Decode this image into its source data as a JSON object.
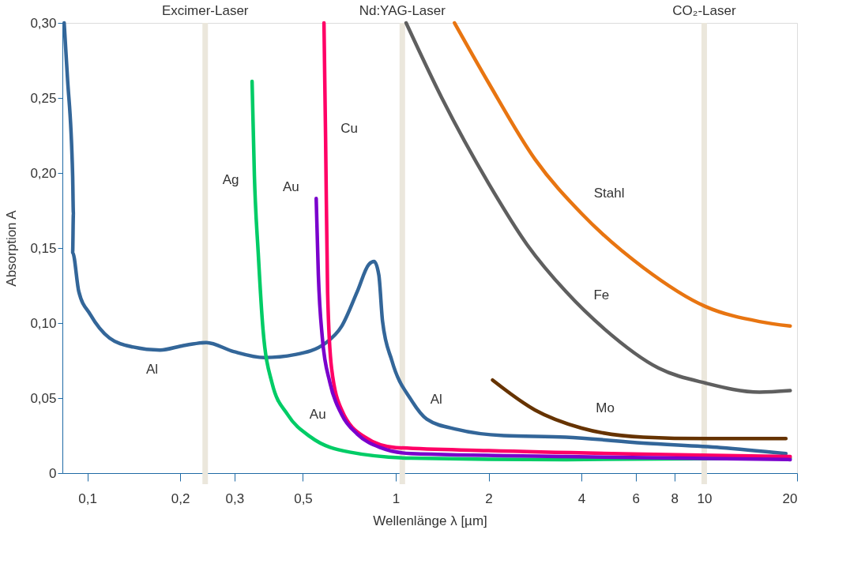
{
  "chart_data": {
    "type": "line",
    "xlabel": "Wellenlänge λ [µm]",
    "ylabel": "Absorption A",
    "log": "x",
    "grid": false,
    "line_style": "solid",
    "marker": "none",
    "xlim": [
      0.083,
      20
    ],
    "ylim": [
      0,
      0.3
    ],
    "xticks": [
      {
        "value": 0.1,
        "label": "0,1"
      },
      {
        "value": 0.2,
        "label": "0,2"
      },
      {
        "value": 0.3,
        "label": "0,3"
      },
      {
        "value": 0.5,
        "label": "0,5"
      },
      1,
      2,
      4,
      6,
      8,
      10,
      20
    ],
    "yticks": [
      {
        "value": 0,
        "label": "0"
      },
      {
        "value": 0.05,
        "label": "0,05"
      },
      {
        "value": 0.1,
        "label": "0,10"
      },
      {
        "value": 0.15,
        "label": "0,15"
      },
      {
        "value": 0.2,
        "label": "0,20"
      },
      {
        "value": 0.25,
        "label": "0,25"
      },
      {
        "value": 0.3,
        "label": "0,30"
      }
    ],
    "ref_lines": [
      {
        "axis": "x",
        "value": 0.241,
        "label": "Excimer-Laser",
        "color": "#ebe7dc"
      },
      {
        "axis": "x",
        "value": 1.05,
        "label": "Nd:YAG-Laser",
        "color": "#ebe7dc"
      },
      {
        "axis": "x",
        "value": 10,
        "label": "CO₂-Laser",
        "color": "#ebe7dc"
      }
    ],
    "series": [
      {
        "name": "Al",
        "color": "#336699",
        "x": [
          0.0841,
          0.0861,
          0.0896,
          0.0901,
          0.0896,
          0.0938,
          0.102,
          0.118,
          0.141,
          0.172,
          0.205,
          0.243,
          0.298,
          0.375,
          0.472,
          0.595,
          0.668,
          0.75,
          0.817,
          0.851,
          0.881,
          0.906,
          0.971,
          1.12,
          1.26,
          1.59,
          2.24,
          3.56,
          6.34,
          11.3,
          18.4
        ],
        "values": [
          0.3,
          0.265,
          0.198,
          0.173,
          0.147,
          0.121,
          0.106,
          0.09,
          0.084,
          0.082,
          0.085,
          0.087,
          0.081,
          0.077,
          0.079,
          0.087,
          0.098,
          0.121,
          0.139,
          0.141,
          0.132,
          0.101,
          0.075,
          0.049,
          0.036,
          0.029,
          0.025,
          0.024,
          0.02,
          0.017,
          0.013
        ]
      },
      {
        "name": "Ag",
        "color": "#00cc66",
        "x": [
          0.342,
          0.348,
          0.358,
          0.371,
          0.397,
          0.446,
          0.53,
          0.708,
          1.12,
          3.56,
          19.0
        ],
        "values": [
          0.261,
          0.198,
          0.147,
          0.096,
          0.06,
          0.039,
          0.024,
          0.014,
          0.01,
          0.009,
          0.01
        ]
      },
      {
        "name": "Cu",
        "color": "#ff0066",
        "x": [
          0.585,
          0.592,
          0.601,
          0.619,
          0.668,
          0.794,
          1.0,
          2.0,
          19.0
        ],
        "values": [
          0.3,
          0.224,
          0.121,
          0.07,
          0.042,
          0.024,
          0.017,
          0.015,
          0.011
        ]
      },
      {
        "name": "Au",
        "color": "#7a00cc",
        "x": [
          0.552,
          0.561,
          0.578,
          0.612,
          0.668,
          0.75,
          0.891,
          1.12,
          3.56,
          19.0
        ],
        "values": [
          0.183,
          0.132,
          0.09,
          0.06,
          0.039,
          0.026,
          0.017,
          0.013,
          0.011,
          0.009
        ]
      },
      {
        "name": "Fe",
        "color": "#5f5f5f",
        "x": [
          1.08,
          1.41,
          2.0,
          2.67,
          3.56,
          4.75,
          7.11,
          10.1,
          15.1,
          19.0
        ],
        "values": [
          0.3,
          0.25,
          0.193,
          0.152,
          0.121,
          0.096,
          0.07,
          0.06,
          0.054,
          0.055
        ]
      },
      {
        "name": "Stahl",
        "color": "#e87511",
        "x": [
          1.55,
          2.0,
          2.83,
          4.0,
          6.34,
          10.1,
          15.1,
          19.0
        ],
        "values": [
          0.3,
          0.26,
          0.209,
          0.173,
          0.137,
          0.111,
          0.101,
          0.098
        ]
      },
      {
        "name": "Mo",
        "color": "#663300",
        "x": [
          2.06,
          2.83,
          4.0,
          6.34,
          10.1,
          18.4
        ],
        "values": [
          0.062,
          0.042,
          0.03,
          0.024,
          0.023,
          0.023
        ]
      }
    ]
  }
}
